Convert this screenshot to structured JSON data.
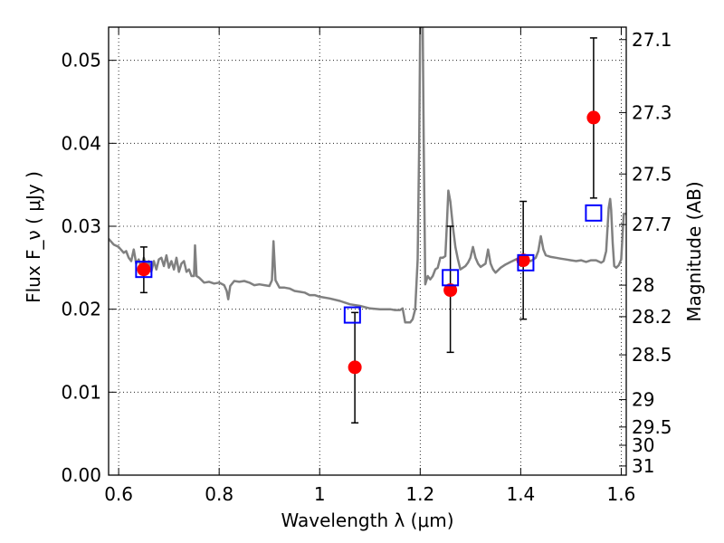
{
  "chart_data": {
    "type": "scatter",
    "title": "",
    "xlabel": "Wavelength  λ (μm)",
    "ylabel_left": "Flux  F_ν  ( μJy )",
    "ylabel_right": "Magnitude (AB)",
    "xlim": [
      0.58,
      1.61
    ],
    "ylim": [
      0.0,
      0.054
    ],
    "grid": true,
    "grid_style": "dotted",
    "x_ticks": [
      0.6,
      0.8,
      1.0,
      1.2,
      1.4,
      1.6
    ],
    "x_tick_labels": [
      "0.6",
      "0.8",
      "1",
      "1.2",
      "1.4",
      "1.6"
    ],
    "y_ticks": [
      0.0,
      0.01,
      0.02,
      0.03,
      0.04,
      0.05
    ],
    "y_tick_labels": [
      "0.00",
      "0.01",
      "0.02",
      "0.03",
      "0.04",
      "0.05"
    ],
    "mag_ticks": [
      {
        "label": "27.1",
        "flux": 0.0525
      },
      {
        "label": "27.3",
        "flux": 0.0437
      },
      {
        "label": "27.5",
        "flux": 0.0363
      },
      {
        "label": "27.7",
        "flux": 0.0302
      },
      {
        "label": "28",
        "flux": 0.0229
      },
      {
        "label": "28.2",
        "flux": 0.0191
      },
      {
        "label": "28.5",
        "flux": 0.0145
      },
      {
        "label": "29",
        "flux": 0.0091
      },
      {
        "label": "29.5",
        "flux": 0.0058
      },
      {
        "label": "30",
        "flux": 0.0036
      },
      {
        "label": "31",
        "flux": 0.0011
      }
    ],
    "series": [
      {
        "kind": "line",
        "color": "#808080",
        "points": [
          [
            0.58,
            0.0285
          ],
          [
            0.59,
            0.0278
          ],
          [
            0.6,
            0.0275
          ],
          [
            0.61,
            0.0268
          ],
          [
            0.615,
            0.027
          ],
          [
            0.62,
            0.0262
          ],
          [
            0.625,
            0.0258
          ],
          [
            0.63,
            0.0272
          ],
          [
            0.635,
            0.0255
          ],
          [
            0.64,
            0.026
          ],
          [
            0.645,
            0.025
          ],
          [
            0.65,
            0.0262
          ],
          [
            0.655,
            0.0252
          ],
          [
            0.66,
            0.0258
          ],
          [
            0.665,
            0.0245
          ],
          [
            0.67,
            0.0258
          ],
          [
            0.675,
            0.0248
          ],
          [
            0.68,
            0.026
          ],
          [
            0.685,
            0.0262
          ],
          [
            0.69,
            0.0252
          ],
          [
            0.695,
            0.0265
          ],
          [
            0.7,
            0.025
          ],
          [
            0.705,
            0.0258
          ],
          [
            0.71,
            0.0248
          ],
          [
            0.715,
            0.0262
          ],
          [
            0.72,
            0.0245
          ],
          [
            0.725,
            0.0255
          ],
          [
            0.73,
            0.0258
          ],
          [
            0.735,
            0.0245
          ],
          [
            0.74,
            0.0248
          ],
          [
            0.745,
            0.024
          ],
          [
            0.75,
            0.024
          ],
          [
            0.752,
            0.0277
          ],
          [
            0.755,
            0.024
          ],
          [
            0.76,
            0.0238
          ],
          [
            0.77,
            0.0232
          ],
          [
            0.78,
            0.0233
          ],
          [
            0.79,
            0.0231
          ],
          [
            0.8,
            0.0232
          ],
          [
            0.81,
            0.0229
          ],
          [
            0.815,
            0.0222
          ],
          [
            0.818,
            0.0212
          ],
          [
            0.822,
            0.0228
          ],
          [
            0.83,
            0.0234
          ],
          [
            0.84,
            0.0233
          ],
          [
            0.85,
            0.0234
          ],
          [
            0.86,
            0.0232
          ],
          [
            0.87,
            0.0229
          ],
          [
            0.88,
            0.023
          ],
          [
            0.89,
            0.0229
          ],
          [
            0.9,
            0.0228
          ],
          [
            0.905,
            0.0235
          ],
          [
            0.908,
            0.0282
          ],
          [
            0.912,
            0.0235
          ],
          [
            0.92,
            0.0226
          ],
          [
            0.93,
            0.0226
          ],
          [
            0.94,
            0.0225
          ],
          [
            0.95,
            0.0222
          ],
          [
            0.96,
            0.0221
          ],
          [
            0.97,
            0.022
          ],
          [
            0.98,
            0.0217
          ],
          [
            0.99,
            0.0217
          ],
          [
            1.0,
            0.0215
          ],
          [
            1.02,
            0.0213
          ],
          [
            1.04,
            0.021
          ],
          [
            1.06,
            0.0206
          ],
          [
            1.08,
            0.0204
          ],
          [
            1.1,
            0.0201
          ],
          [
            1.12,
            0.02
          ],
          [
            1.14,
            0.02
          ],
          [
            1.15,
            0.0199
          ],
          [
            1.16,
            0.0199
          ],
          [
            1.165,
            0.0201
          ],
          [
            1.17,
            0.0184
          ],
          [
            1.18,
            0.0184
          ],
          [
            1.185,
            0.0188
          ],
          [
            1.19,
            0.02
          ],
          [
            1.195,
            0.026
          ],
          [
            1.198,
            0.04
          ],
          [
            1.2,
            0.054
          ],
          [
            1.205,
            0.054
          ],
          [
            1.207,
            0.04
          ],
          [
            1.21,
            0.023
          ],
          [
            1.215,
            0.024
          ],
          [
            1.22,
            0.0236
          ],
          [
            1.225,
            0.024
          ],
          [
            1.23,
            0.0248
          ],
          [
            1.235,
            0.025
          ],
          [
            1.24,
            0.0262
          ],
          [
            1.245,
            0.0262
          ],
          [
            1.25,
            0.0264
          ],
          [
            1.253,
            0.03
          ],
          [
            1.256,
            0.0343
          ],
          [
            1.26,
            0.033
          ],
          [
            1.265,
            0.03
          ],
          [
            1.27,
            0.0275
          ],
          [
            1.275,
            0.026
          ],
          [
            1.28,
            0.0248
          ],
          [
            1.29,
            0.0252
          ],
          [
            1.295,
            0.0256
          ],
          [
            1.3,
            0.0262
          ],
          [
            1.305,
            0.0275
          ],
          [
            1.31,
            0.0262
          ],
          [
            1.315,
            0.0255
          ],
          [
            1.32,
            0.0251
          ],
          [
            1.33,
            0.0255
          ],
          [
            1.335,
            0.0272
          ],
          [
            1.34,
            0.0255
          ],
          [
            1.345,
            0.0248
          ],
          [
            1.35,
            0.0244
          ],
          [
            1.36,
            0.025
          ],
          [
            1.37,
            0.0254
          ],
          [
            1.38,
            0.0257
          ],
          [
            1.39,
            0.026
          ],
          [
            1.4,
            0.0262
          ],
          [
            1.41,
            0.026
          ],
          [
            1.42,
            0.0258
          ],
          [
            1.43,
            0.0262
          ],
          [
            1.435,
            0.027
          ],
          [
            1.44,
            0.0288
          ],
          [
            1.445,
            0.0272
          ],
          [
            1.45,
            0.0265
          ],
          [
            1.46,
            0.0263
          ],
          [
            1.47,
            0.0262
          ],
          [
            1.48,
            0.0261
          ],
          [
            1.49,
            0.026
          ],
          [
            1.5,
            0.0259
          ],
          [
            1.51,
            0.0258
          ],
          [
            1.52,
            0.0259
          ],
          [
            1.53,
            0.0257
          ],
          [
            1.54,
            0.0259
          ],
          [
            1.55,
            0.0259
          ],
          [
            1.56,
            0.0256
          ],
          [
            1.565,
            0.0258
          ],
          [
            1.57,
            0.027
          ],
          [
            1.575,
            0.0322
          ],
          [
            1.578,
            0.0333
          ],
          [
            1.58,
            0.032
          ],
          [
            1.583,
            0.028
          ],
          [
            1.586,
            0.0252
          ],
          [
            1.59,
            0.025
          ],
          [
            1.595,
            0.0253
          ],
          [
            1.6,
            0.026
          ],
          [
            1.605,
            0.0315
          ],
          [
            1.61,
            0.0315
          ]
        ]
      },
      {
        "kind": "points",
        "marker": "circle",
        "color": "#ff0000",
        "points": [
          {
            "x": 0.65,
            "y": 0.0248,
            "yerr_low": 0.022,
            "yerr_high": 0.0275
          },
          {
            "x": 1.07,
            "y": 0.013,
            "yerr_low": 0.0063,
            "yerr_high": 0.0196
          },
          {
            "x": 1.26,
            "y": 0.0223,
            "yerr_low": 0.0148,
            "yerr_high": 0.03
          },
          {
            "x": 1.405,
            "y": 0.0259,
            "yerr_low": 0.0188,
            "yerr_high": 0.033
          },
          {
            "x": 1.545,
            "y": 0.0431,
            "yerr_low": 0.0334,
            "yerr_high": 0.0527
          }
        ]
      },
      {
        "kind": "points",
        "marker": "open-square",
        "color": "#0000ff",
        "points": [
          {
            "x": 0.65,
            "y": 0.0248
          },
          {
            "x": 1.065,
            "y": 0.0193
          },
          {
            "x": 1.26,
            "y": 0.0238
          },
          {
            "x": 1.41,
            "y": 0.0256
          },
          {
            "x": 1.545,
            "y": 0.0316
          }
        ]
      }
    ]
  }
}
